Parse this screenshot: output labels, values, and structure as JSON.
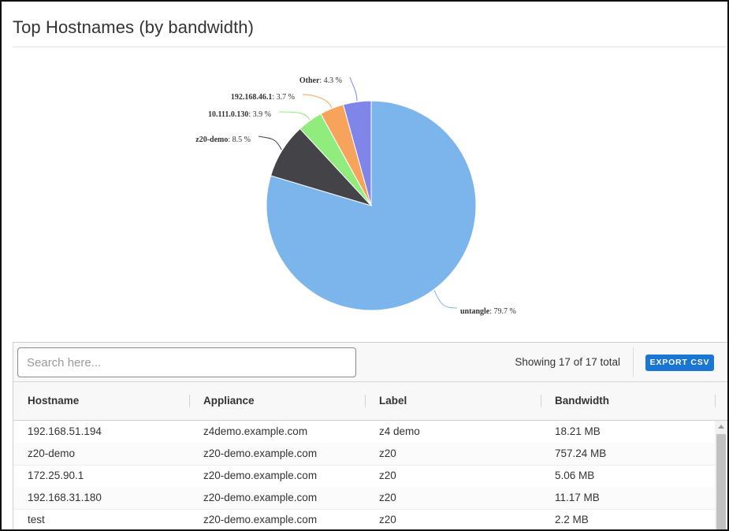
{
  "card": {
    "title": "Top Hostnames (by bandwidth)"
  },
  "chart_data": {
    "type": "pie",
    "title": "",
    "start_angle_deg": 0,
    "slices": [
      {
        "name": "untangle",
        "value": 79.7,
        "label": "untangle",
        "pct_text": ": 79.7 %",
        "color": "#7cb5ec"
      },
      {
        "name": "z20-demo",
        "value": 8.5,
        "label": "z20-demo",
        "pct_text": ": 8.5 %",
        "color": "#434348"
      },
      {
        "name": "10.111.0.130",
        "value": 3.9,
        "label": "10.111.0.130",
        "pct_text": ": 3.9 %",
        "color": "#90ed7d"
      },
      {
        "name": "192.168.46.1",
        "value": 3.7,
        "label": "192.168.46.1",
        "pct_text": ": 3.7 %",
        "color": "#f7a35c"
      },
      {
        "name": "Other",
        "value": 4.3,
        "label": "Other",
        "pct_text": ": 4.3 %",
        "color": "#8085e9"
      }
    ]
  },
  "grid": {
    "search_placeholder": "Search here...",
    "showing": "Showing 17 of 17 total",
    "export_label": "EXPORT CSV",
    "columns": [
      "Hostname",
      "Appliance",
      "Label",
      "Bandwidth"
    ],
    "rows": [
      [
        "192.168.51.194",
        "z4demo.example.com",
        "z4 demo",
        "18.21 MB"
      ],
      [
        "z20-demo",
        "z20-demo.example.com",
        "z20",
        "757.24 MB"
      ],
      [
        "172.25.90.1",
        "z20-demo.example.com",
        "z20",
        "5.06 MB"
      ],
      [
        "192.168.31.180",
        "z20-demo.example.com",
        "z20",
        "11.17 MB"
      ],
      [
        "test",
        "z20-demo.example.com",
        "z20",
        "2.2 MB"
      ]
    ]
  }
}
